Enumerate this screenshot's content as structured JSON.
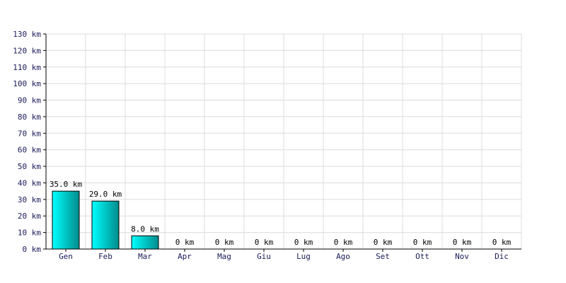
{
  "chart_data": {
    "type": "bar",
    "title": "",
    "xlabel": "",
    "ylabel": "",
    "unit": "km",
    "ylim": [
      0,
      130
    ],
    "ytick_step": 10,
    "grid": true,
    "categories": [
      "Gen",
      "Feb",
      "Mar",
      "Apr",
      "Mag",
      "Giu",
      "Lug",
      "Ago",
      "Set",
      "Ott",
      "Nov",
      "Dic"
    ],
    "values": [
      35.0,
      29.0,
      8.0,
      0,
      0,
      0,
      0,
      0,
      0,
      0,
      0,
      0
    ],
    "data_labels": [
      "35.0 km",
      "29.0 km",
      "8.0 km",
      "0 km",
      "0 km",
      "0 km",
      "0 km",
      "0 km",
      "0 km",
      "0 km",
      "0 km",
      "0 km"
    ],
    "ytick_labels": [
      "0 km",
      "10 km",
      "20 km",
      "30 km",
      "40 km",
      "50 km",
      "60 km",
      "70 km",
      "80 km",
      "90 km",
      "100 km",
      "110 km",
      "120 km",
      "130 km"
    ],
    "colors": {
      "bar_dark": "#008b8b",
      "bar_light": "#00ffff",
      "grid": "#dcdcdc"
    }
  }
}
